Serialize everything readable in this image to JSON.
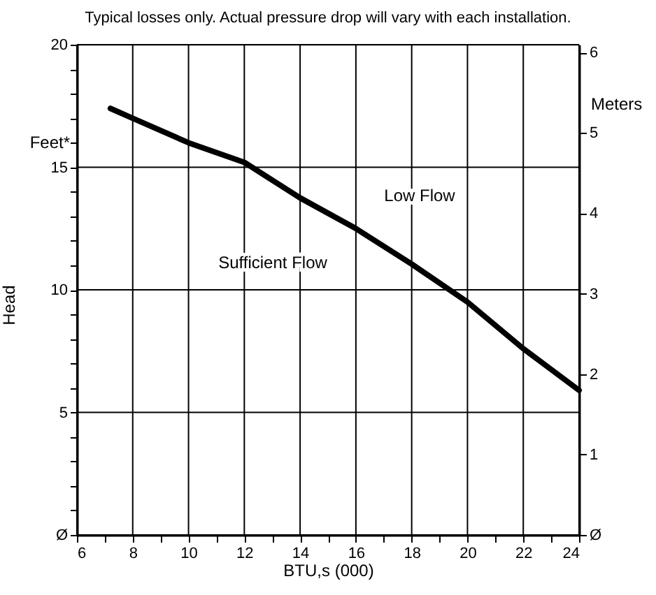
{
  "chart_data": {
    "type": "line",
    "title": "Typical losses only.  Actual pressure drop will vary with each installation.",
    "xlabel": "BTU,s (000)",
    "ylabel": "Head",
    "y2label": "Meters",
    "annotations": [
      "Feet*",
      "Low Flow",
      "Sufficient Flow"
    ],
    "series": [
      {
        "color": "#000000",
        "x": [
          7.2,
          8,
          10,
          12,
          14,
          16,
          18,
          20,
          22,
          24
        ],
        "values": [
          17.4,
          17.0,
          16.0,
          15.2,
          13.75,
          12.5,
          11.05,
          9.5,
          7.6,
          5.9
        ]
      }
    ],
    "xlim": [
      6,
      24
    ],
    "xticks": [
      6,
      {
        "value": 7,
        "label": null
      },
      8,
      {
        "value": 9,
        "label": null
      },
      10,
      {
        "value": 11,
        "label": null
      },
      12,
      {
        "value": 13,
        "label": null
      },
      14,
      {
        "value": 15,
        "label": null
      },
      16,
      {
        "value": 17,
        "label": null
      },
      18,
      {
        "value": 19,
        "label": null
      },
      20,
      {
        "value": 21,
        "label": null
      },
      22,
      {
        "value": 23,
        "label": null
      },
      24
    ],
    "ylim": [
      0,
      20
    ],
    "yticks": [
      {
        "value": 0,
        "label": "Ø"
      },
      {
        "value": 1,
        "label": null
      },
      {
        "value": 2,
        "label": null
      },
      {
        "value": 3,
        "label": null
      },
      {
        "value": 4,
        "label": null
      },
      5,
      {
        "value": 6,
        "label": null
      },
      {
        "value": 7,
        "label": null
      },
      {
        "value": 8,
        "label": null
      },
      {
        "value": 9,
        "label": null
      },
      10,
      {
        "value": 11,
        "label": null
      },
      {
        "value": 12,
        "label": null
      },
      {
        "value": 13,
        "label": null
      },
      {
        "value": 14,
        "label": null
      },
      15,
      {
        "value": 16,
        "label": null
      },
      {
        "value": 17,
        "label": null
      },
      {
        "value": 18,
        "label": null
      },
      {
        "value": 19,
        "label": null
      },
      20
    ],
    "y2lim": [
      0,
      6.096
    ],
    "y2ticks": [
      {
        "value": 0,
        "label": "Ø"
      },
      1,
      2,
      3,
      4,
      5,
      6
    ],
    "grid": true,
    "marker": "none",
    "line_style": "solid"
  }
}
